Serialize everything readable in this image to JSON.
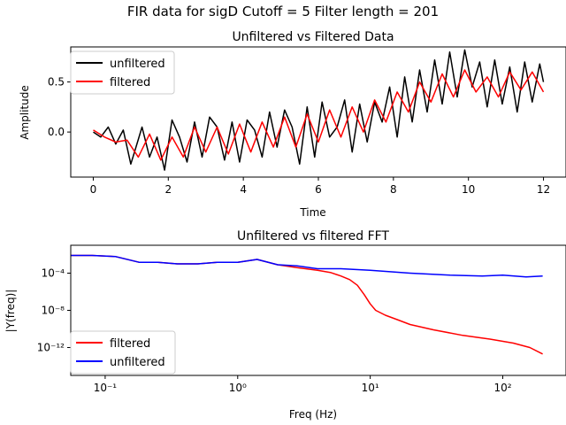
{
  "figure": {
    "suptitle": "FIR data for sigD  Cutoff = 5 Filter length = 201"
  },
  "chart_data": [
    {
      "type": "line",
      "title": "Unfiltered vs Filtered Data",
      "xlabel": "Time",
      "ylabel": "Amplitude",
      "xlim": [
        -0.6,
        12.6
      ],
      "ylim": [
        -0.45,
        0.85
      ],
      "x_ticks": [
        0,
        2,
        4,
        6,
        8,
        10,
        12
      ],
      "x_tick_labels": [
        "0",
        "2",
        "4",
        "6",
        "8",
        "10",
        "12"
      ],
      "y_ticks": [
        0.0,
        0.5
      ],
      "y_tick_labels": [
        "0.0",
        "0.5"
      ],
      "legend": "upper-left",
      "series": [
        {
          "name": "unfiltered",
          "color": "#000000",
          "x": [
            0,
            0.2,
            0.4,
            0.6,
            0.8,
            1.0,
            1.1,
            1.3,
            1.5,
            1.7,
            1.9,
            2.1,
            2.3,
            2.5,
            2.7,
            2.9,
            3.1,
            3.3,
            3.5,
            3.7,
            3.9,
            4.1,
            4.3,
            4.5,
            4.7,
            4.9,
            5.1,
            5.3,
            5.5,
            5.7,
            5.9,
            6.1,
            6.3,
            6.5,
            6.7,
            6.9,
            7.1,
            7.3,
            7.5,
            7.7,
            7.9,
            8.1,
            8.3,
            8.5,
            8.7,
            8.9,
            9.1,
            9.3,
            9.5,
            9.7,
            9.9,
            10.1,
            10.3,
            10.5,
            10.7,
            10.9,
            11.1,
            11.3,
            11.5,
            11.7,
            11.9,
            12.0
          ],
          "y": [
            0.0,
            -0.05,
            0.05,
            -0.12,
            0.02,
            -0.32,
            -0.2,
            0.05,
            -0.25,
            -0.05,
            -0.38,
            0.12,
            -0.05,
            -0.3,
            0.1,
            -0.25,
            0.15,
            0.05,
            -0.28,
            0.1,
            -0.3,
            0.12,
            0.02,
            -0.25,
            0.2,
            -0.15,
            0.22,
            0.05,
            -0.32,
            0.25,
            -0.25,
            0.3,
            -0.05,
            0.05,
            0.32,
            -0.2,
            0.28,
            -0.1,
            0.3,
            0.1,
            0.45,
            -0.05,
            0.55,
            0.1,
            0.62,
            0.2,
            0.72,
            0.28,
            0.8,
            0.35,
            0.82,
            0.45,
            0.7,
            0.25,
            0.72,
            0.28,
            0.65,
            0.2,
            0.7,
            0.3,
            0.68,
            0.5
          ]
        },
        {
          "name": "filtered",
          "color": "#ff0000",
          "x": [
            0,
            0.3,
            0.6,
            0.9,
            1.2,
            1.5,
            1.8,
            2.1,
            2.4,
            2.7,
            3.0,
            3.3,
            3.6,
            3.9,
            4.2,
            4.5,
            4.8,
            5.1,
            5.4,
            5.7,
            6.0,
            6.3,
            6.6,
            6.9,
            7.2,
            7.5,
            7.8,
            8.1,
            8.4,
            8.7,
            9.0,
            9.3,
            9.6,
            9.9,
            10.2,
            10.5,
            10.8,
            11.1,
            11.4,
            11.7,
            12.0
          ],
          "y": [
            0.02,
            -0.05,
            -0.1,
            -0.08,
            -0.25,
            -0.02,
            -0.28,
            -0.05,
            -0.25,
            0.05,
            -0.2,
            0.05,
            -0.22,
            0.08,
            -0.2,
            0.1,
            -0.15,
            0.15,
            -0.15,
            0.18,
            -0.1,
            0.22,
            -0.05,
            0.25,
            0.0,
            0.32,
            0.1,
            0.4,
            0.2,
            0.5,
            0.3,
            0.58,
            0.35,
            0.62,
            0.4,
            0.55,
            0.35,
            0.6,
            0.42,
            0.6,
            0.4
          ]
        }
      ]
    },
    {
      "type": "line",
      "title": "Unfiltered vs filtered FFT",
      "xlabel": "Freq (Hz)",
      "ylabel": "|Y(freq)|",
      "x_scale": "log",
      "y_scale": "log",
      "xlim": [
        0.055,
        300
      ],
      "ylim": [
        1e-15,
        0.1
      ],
      "x_ticks": [
        0.1,
        1,
        10,
        100
      ],
      "x_tick_labels": [
        "10⁻¹",
        "10⁰",
        "10¹",
        "10²"
      ],
      "y_ticks": [
        1e-12,
        1e-08,
        0.0001
      ],
      "y_tick_labels": [
        "10⁻¹²",
        "10⁻⁸",
        "10⁻⁴"
      ],
      "legend": "lower-left",
      "series": [
        {
          "name": "filtered",
          "color": "#ff0000",
          "x": [
            0.055,
            0.08,
            0.12,
            0.18,
            0.25,
            0.35,
            0.5,
            0.7,
            1.0,
            1.4,
            2.0,
            2.8,
            4.0,
            5.0,
            6.0,
            7.0,
            8.0,
            9.0,
            10.0,
            11.0,
            13.0,
            16.0,
            20.0,
            30.0,
            50.0,
            80.0,
            120.0,
            160.0,
            200.0
          ],
          "y": [
            0.008,
            0.008,
            0.006,
            0.0015,
            0.0015,
            0.001,
            0.001,
            0.0015,
            0.0015,
            0.003,
            0.0008,
            0.0004,
            0.0002,
            0.00012,
            5e-05,
            2e-05,
            5e-06,
            5e-07,
            5e-08,
            1e-08,
            3e-09,
            1e-09,
            3e-10,
            8e-11,
            2e-11,
            8e-12,
            3e-12,
            1e-12,
            2e-13
          ]
        },
        {
          "name": "unfiltered",
          "color": "#0000ff",
          "x": [
            0.055,
            0.08,
            0.12,
            0.18,
            0.25,
            0.35,
            0.5,
            0.7,
            1.0,
            1.4,
            2.0,
            2.8,
            4.0,
            6.0,
            10.0,
            20.0,
            40.0,
            70.0,
            100.0,
            150.0,
            200.0
          ],
          "y": [
            0.008,
            0.008,
            0.006,
            0.0015,
            0.0015,
            0.001,
            0.001,
            0.0015,
            0.0015,
            0.003,
            0.0008,
            0.0006,
            0.0003,
            0.0003,
            0.0002,
            0.0001,
            6e-05,
            5e-05,
            6e-05,
            4e-05,
            5e-05
          ]
        }
      ]
    }
  ]
}
